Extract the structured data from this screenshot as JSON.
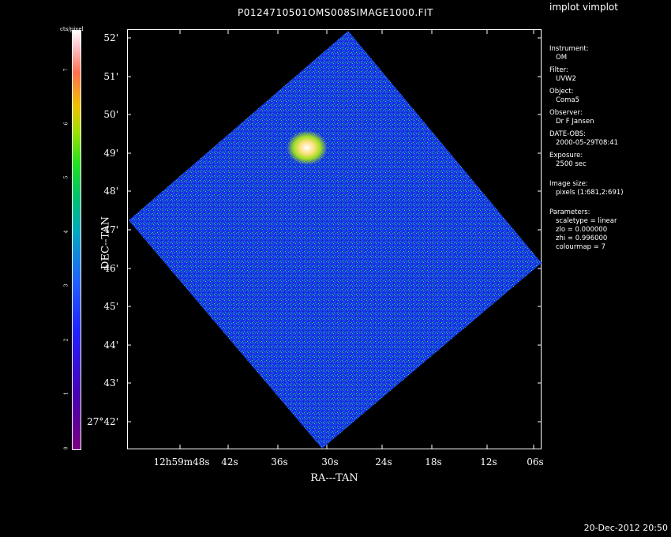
{
  "app_title": "implot vimplot",
  "title": "P0124710501OMS008SIMAGE1000.FIT",
  "timestamp": "20-Dec-2012 20:50",
  "colorbar": {
    "label": "cts/pixel",
    "ticks": [
      "0",
      "1",
      "2",
      "3",
      "4",
      "5",
      "6",
      "7"
    ]
  },
  "axes": {
    "xlabel": "RA---TAN",
    "ylabel": "DEC--TAN",
    "x_ticks": [
      "12h59m48s",
      "42s",
      "36s",
      "30s",
      "24s",
      "18s",
      "12s",
      "06s"
    ],
    "y_ticks": [
      "52'",
      "51'",
      "50'",
      "49'",
      "48'",
      "47'",
      "46'",
      "45'",
      "44'",
      "43'",
      "27°42'"
    ]
  },
  "info": {
    "instrument_label": "Instrument:",
    "instrument": "OM",
    "filter_label": "Filter:",
    "filter": "UVW2",
    "object_label": "Object:",
    "object": "Coma5",
    "observer_label": "Observer:",
    "observer": "Dr F Jansen",
    "date_label": "DATE-OBS:",
    "date": "2000-05-29T08:41",
    "exposure_label": "Exposure:",
    "exposure": "2500 sec",
    "image_size_label": "Image size:",
    "image_size": "pixels (1:681,2:691)",
    "parameters_label": "Parameters:",
    "scaletype": "scaletype = linear",
    "zlo": "zlo = 0.000000",
    "zhi": "zhi = 0.996000",
    "colourmap": "colourmap =   7"
  }
}
